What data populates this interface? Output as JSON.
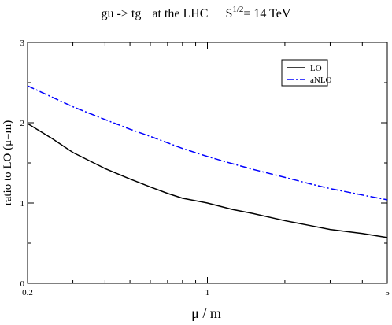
{
  "chart_data": {
    "type": "line",
    "title": {
      "process": "gu -> tg",
      "context": "at the LHC",
      "energy_base": "S",
      "energy_exp": "1/2",
      "energy_value": "= 14 TeV"
    },
    "xlabel": "μ / m",
    "ylabel": "ratio to LO (μ=m)",
    "xscale": "log",
    "xlim": [
      0.2,
      5
    ],
    "ylim": [
      0,
      3
    ],
    "xticks": [
      {
        "value": 0.2,
        "label": "0.2"
      },
      {
        "value": 1,
        "label": "1"
      },
      {
        "value": 5,
        "label": "5"
      }
    ],
    "yticks": [
      {
        "value": 0,
        "label": "0"
      },
      {
        "value": 1,
        "label": "1"
      },
      {
        "value": 2,
        "label": "2"
      },
      {
        "value": 3,
        "label": "3"
      }
    ],
    "grid": false,
    "legend": {
      "position": "top-right"
    },
    "series": [
      {
        "name": "LO",
        "color": "#000000",
        "dash": "solid",
        "x": [
          0.2,
          0.25,
          0.3,
          0.4,
          0.5,
          0.6,
          0.7,
          0.8,
          1.0,
          1.25,
          1.5,
          2.0,
          2.5,
          3.0,
          4.0,
          5.0
        ],
        "y": [
          1.99,
          1.8,
          1.63,
          1.43,
          1.3,
          1.2,
          1.12,
          1.06,
          1.0,
          0.92,
          0.87,
          0.78,
          0.72,
          0.67,
          0.62,
          0.57
        ]
      },
      {
        "name": "aNLO",
        "color": "#0000ff",
        "dash": "dashdot",
        "x": [
          0.2,
          0.3,
          0.4,
          0.5,
          0.6,
          0.7,
          0.8,
          1.0,
          1.25,
          1.5,
          2.0,
          2.5,
          3.0,
          4.0,
          5.0
        ],
        "y": [
          2.46,
          2.2,
          2.04,
          1.92,
          1.83,
          1.75,
          1.68,
          1.58,
          1.49,
          1.42,
          1.32,
          1.24,
          1.18,
          1.1,
          1.04
        ]
      }
    ]
  }
}
